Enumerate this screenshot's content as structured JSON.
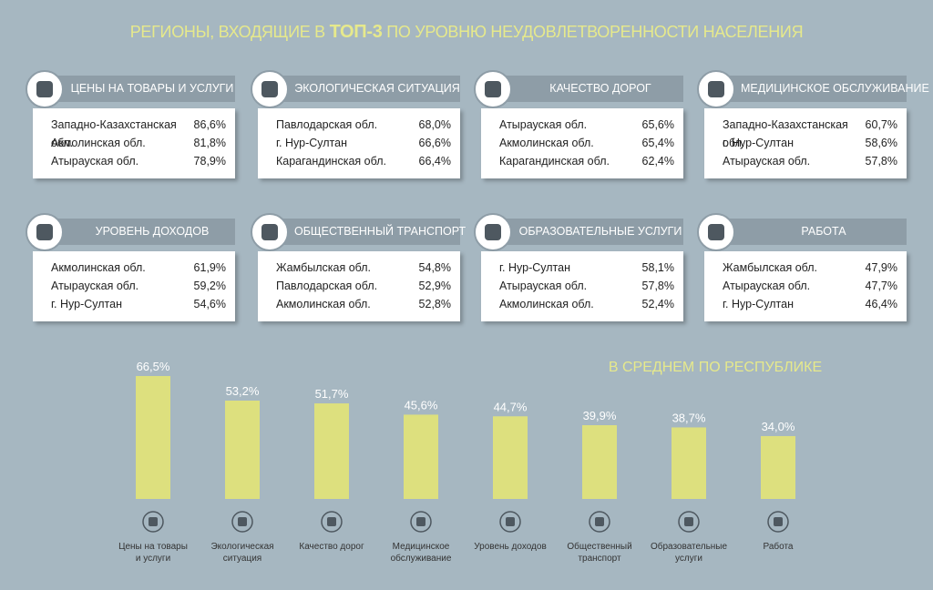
{
  "header": {
    "title_before": "РЕГИОНЫ, ВХОДЯЩИЕ В ",
    "title_bold": "ТОП-3",
    "title_after": " ПО УРОВНЮ НЕУДОВЛЕТВОРЕННОСТИ НАСЕЛЕНИЯ"
  },
  "cards": [
    {
      "title": "ЦЕНЫ НА ТОВАРЫ И УСЛУГИ",
      "rows": [
        [
          "Западно-Казахстанская обл.",
          "86,6%"
        ],
        [
          "Акмолинская обл.",
          "81,8%"
        ],
        [
          "Атырауская обл.",
          "78,9%"
        ]
      ]
    },
    {
      "title": "ЭКОЛОГИЧЕСКАЯ СИТУАЦИЯ",
      "rows": [
        [
          "Павлодарская обл.",
          "68,0%"
        ],
        [
          "г. Нур-Султан",
          "66,6%"
        ],
        [
          "Карагандинская обл.",
          "66,4%"
        ]
      ]
    },
    {
      "title": "КАЧЕСТВО ДОРОГ",
      "rows": [
        [
          "Атырауская обл.",
          "65,6%"
        ],
        [
          "Акмолинская обл.",
          "65,4%"
        ],
        [
          "Карагандинская обл.",
          "62,4%"
        ]
      ]
    },
    {
      "title": "МЕДИЦИНСКОЕ ОБСЛУЖИВАНИЕ",
      "rows": [
        [
          "Западно-Казахстанская обл.",
          "60,7%"
        ],
        [
          "г. Нур-Султан",
          "58,6%"
        ],
        [
          "Атырауская обл.",
          "57,8%"
        ]
      ]
    },
    {
      "title": "УРОВЕНЬ ДОХОДОВ",
      "rows": [
        [
          "Акмолинская обл.",
          "61,9%"
        ],
        [
          "Атырауская обл.",
          "59,2%"
        ],
        [
          "г. Нур-Султан",
          "54,6%"
        ]
      ]
    },
    {
      "title": "ОБЩЕСТВЕННЫЙ ТРАНСПОРТ",
      "rows": [
        [
          "Жамбылская обл.",
          "54,8%"
        ],
        [
          "Павлодарская обл.",
          "52,9%"
        ],
        [
          "Акмолинская обл.",
          "52,8%"
        ]
      ]
    },
    {
      "title": "ОБРАЗОВАТЕЛЬНЫЕ УСЛУГИ",
      "rows": [
        [
          "г. Нур-Султан",
          "58,1%"
        ],
        [
          "Атырауская обл.",
          "57,8%"
        ],
        [
          "Акмолинская обл.",
          "52,4%"
        ]
      ]
    },
    {
      "title": "РАБОТА",
      "rows": [
        [
          "Жамбылская обл.",
          "47,9%"
        ],
        [
          "Атырауская обл.",
          "47,7%"
        ],
        [
          "г. Нур-Султан",
          "46,4%"
        ]
      ]
    }
  ],
  "chart_data": {
    "type": "bar",
    "title": "В СРЕДНЕМ ПО РЕСПУБЛИКЕ",
    "categories": [
      "Цены на товары\nи услуги",
      "Экологическая\nситуация",
      "Качество дорог",
      "Медицинское\nобслуживание",
      "Уровень доходов",
      "Общественный\nтранспорт",
      "Образовательные\nуслуги",
      "Работа"
    ],
    "values": [
      66.5,
      53.2,
      51.7,
      45.6,
      44.7,
      39.9,
      38.7,
      34.0
    ],
    "value_labels": [
      "66,5%",
      "53,2%",
      "51,7%",
      "45,6%",
      "44,7%",
      "39,9%",
      "38,7%",
      "34,0%"
    ],
    "color": "#dde07e"
  }
}
